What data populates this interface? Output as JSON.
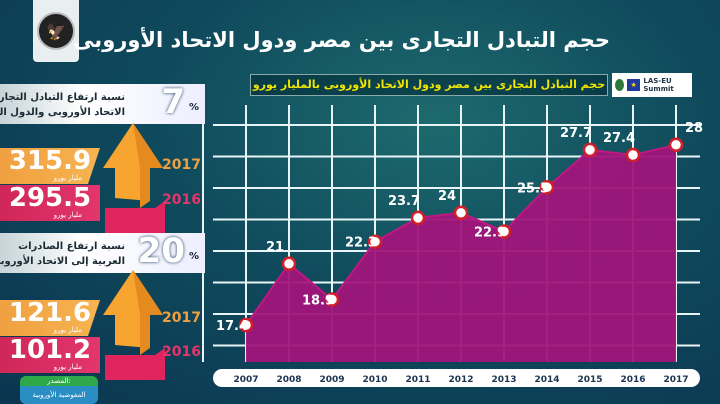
{
  "header": {
    "title": "حجم التبادل التجارى بين مصر ودول الاتحاد الأوروبى",
    "logo_alt": "مجلس الوزراء - المركز الإعلامي"
  },
  "badge": {
    "summit": "LAS-EU Summit"
  },
  "stats": [
    {
      "value": "7",
      "unit": "%",
      "text_line1": "نسبة ارتفاع التبادل التجارى بين",
      "text_line2": "الاتحاد الأوروبى والدول العربية",
      "y2017": "2017",
      "v2017": "315.9",
      "y2016": "2016",
      "v2016": "295.5",
      "currency": "مليار يورو"
    },
    {
      "value": "20",
      "unit": "%",
      "text_line1": "نسبة ارتفاع الصادرات",
      "text_line2": "العربية إلى الاتحاد الأوروبى",
      "y2017": "2017",
      "v2017": "121.6",
      "y2016": "2016",
      "v2016": "101.2",
      "currency": "مليار يورو"
    }
  ],
  "source": {
    "label": "المصدر:",
    "value": "المفوضية الأوروبية"
  },
  "colors": {
    "area": "#a0157a",
    "marker": "#d21f2a",
    "orange": "#f0a040",
    "pink": "#d0275a",
    "subtitle": "#f2e500"
  },
  "chart_data": {
    "type": "area",
    "title": "حجم التبادل التجارى بين مصر ودول الاتحاد الأوروبى بالمليار يورو",
    "categories": [
      "2007",
      "2008",
      "2009",
      "2010",
      "2011",
      "2012",
      "2013",
      "2014",
      "2015",
      "2016",
      "2017"
    ],
    "values": [
      17.4,
      21,
      18.9,
      22.3,
      23.7,
      24,
      22.9,
      25.5,
      27.7,
      27.4,
      28
    ],
    "labels": [
      "17.4",
      "21",
      "18.9",
      "22.3",
      "23.7",
      "24",
      "22.9",
      "25.5",
      "27.7",
      "27.4",
      "28"
    ],
    "ylim": [
      15,
      30
    ],
    "grid": true
  }
}
